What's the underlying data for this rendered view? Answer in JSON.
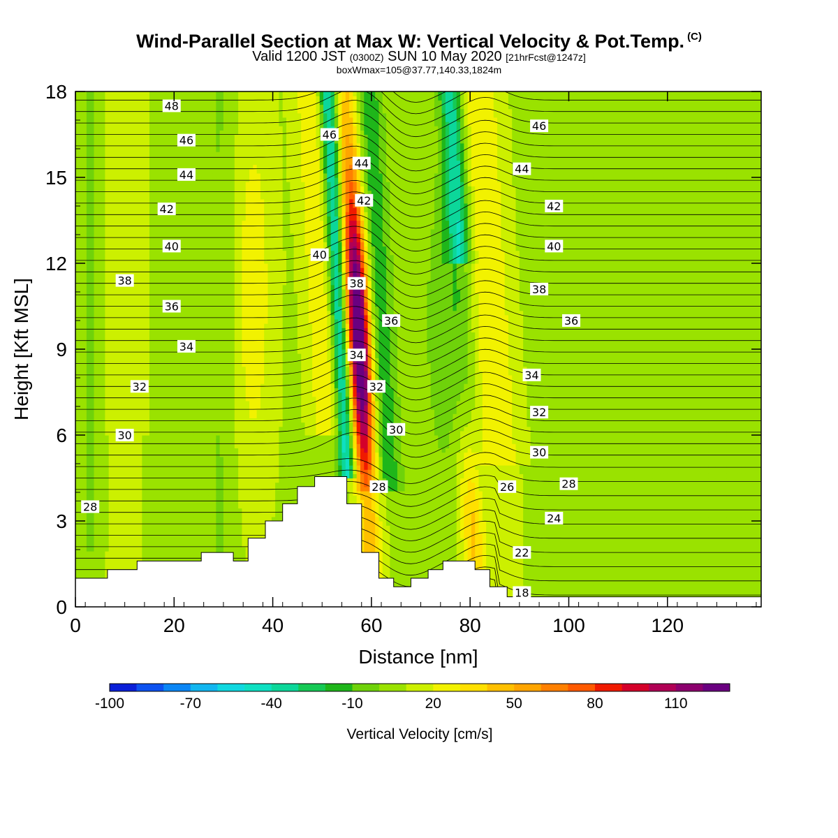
{
  "header": {
    "title": "Wind-Parallel Section at Max W: Vertical Velocity & Pot.Temp.",
    "copyright": "(C)",
    "valid_prefix": "Valid 1200 JST",
    "valid_z": "(0300Z)",
    "valid_date": "SUN 10 May 2020",
    "forecast": "[21hrFcst@1247z]",
    "box_info": "boxWmax=105@37.77,140.33,1824m"
  },
  "chart_data": {
    "type": "heatmap",
    "xlabel": "Distance [nm]",
    "ylabel": "Height [Kft MSL]",
    "xlim": [
      0,
      139
    ],
    "ylim": [
      0,
      18
    ],
    "xticks": [
      0,
      20,
      40,
      60,
      80,
      100,
      120
    ],
    "yticks": [
      0,
      3,
      6,
      9,
      12,
      15,
      18
    ],
    "colorbar": {
      "label": "Vertical Velocity [cm/s]",
      "tick_labels": [
        -100,
        -70,
        -40,
        -10,
        20,
        50,
        80,
        110
      ],
      "levels": [
        -100,
        -90,
        -80,
        -70,
        -60,
        -50,
        -40,
        -30,
        -20,
        -10,
        0,
        10,
        20,
        30,
        40,
        50,
        60,
        70,
        80,
        90,
        100,
        110,
        120
      ],
      "colors": [
        "#0a1fd8",
        "#0d52f0",
        "#0b86f5",
        "#12b6f0",
        "#10d8e0",
        "#0ee0c2",
        "#0cd79a",
        "#16c955",
        "#1fb61a",
        "#6fd20a",
        "#9ae200",
        "#ccf000",
        "#f2f200",
        "#ffe000",
        "#ffc000",
        "#ffa500",
        "#ff8000",
        "#ff5a00",
        "#f01a00",
        "#d4002a",
        "#b00055",
        "#8c006e",
        "#6a0080"
      ]
    },
    "terrain": [
      [
        0,
        1.0
      ],
      [
        6.5,
        1.0
      ],
      [
        6.5,
        1.3
      ],
      [
        12.5,
        1.3
      ],
      [
        12.5,
        1.6
      ],
      [
        25.5,
        1.6
      ],
      [
        25.5,
        1.9
      ],
      [
        32,
        1.9
      ],
      [
        32,
        1.6
      ],
      [
        35,
        1.6
      ],
      [
        35,
        2.4
      ],
      [
        38.5,
        2.4
      ],
      [
        38.5,
        3.0
      ],
      [
        42,
        3.0
      ],
      [
        42,
        3.6
      ],
      [
        45,
        3.6
      ],
      [
        45,
        4.2
      ],
      [
        48.5,
        4.2
      ],
      [
        48.5,
        4.55
      ],
      [
        55,
        4.55
      ],
      [
        55,
        3.6
      ],
      [
        58,
        3.6
      ],
      [
        58,
        1.9
      ],
      [
        61.5,
        1.9
      ],
      [
        61.5,
        1.0
      ],
      [
        64.5,
        1.0
      ],
      [
        64.5,
        0.7
      ],
      [
        68,
        0.7
      ],
      [
        68,
        1.0
      ],
      [
        71.5,
        1.0
      ],
      [
        71.5,
        1.3
      ],
      [
        74.5,
        1.3
      ],
      [
        74.5,
        1.6
      ],
      [
        81,
        1.6
      ],
      [
        81,
        1.3
      ],
      [
        84,
        1.3
      ],
      [
        84,
        0.7
      ],
      [
        87.5,
        0.7
      ],
      [
        87.5,
        0.35
      ],
      [
        139,
        0.35
      ]
    ],
    "theta_labels": [
      {
        "v": "48",
        "x": 19.5,
        "y": 17.5
      },
      {
        "v": "46",
        "x": 22.5,
        "y": 16.3
      },
      {
        "v": "44",
        "x": 22.5,
        "y": 15.1
      },
      {
        "v": "42",
        "x": 18.5,
        "y": 13.9
      },
      {
        "v": "40",
        "x": 19.5,
        "y": 12.6
      },
      {
        "v": "38",
        "x": 10,
        "y": 11.4
      },
      {
        "v": "36",
        "x": 19.5,
        "y": 10.5
      },
      {
        "v": "34",
        "x": 22.5,
        "y": 9.1
      },
      {
        "v": "32",
        "x": 13,
        "y": 7.7
      },
      {
        "v": "30",
        "x": 10,
        "y": 6.0
      },
      {
        "v": "28",
        "x": 3,
        "y": 3.5
      },
      {
        "v": "46",
        "x": 51.5,
        "y": 16.5
      },
      {
        "v": "44",
        "x": 58,
        "y": 15.5
      },
      {
        "v": "42",
        "x": 58.5,
        "y": 14.2
      },
      {
        "v": "40",
        "x": 49.5,
        "y": 12.3
      },
      {
        "v": "38",
        "x": 57,
        "y": 11.3
      },
      {
        "v": "36",
        "x": 64,
        "y": 10.0
      },
      {
        "v": "34",
        "x": 57,
        "y": 8.8
      },
      {
        "v": "32",
        "x": 61,
        "y": 7.7
      },
      {
        "v": "30",
        "x": 65,
        "y": 6.2
      },
      {
        "v": "28",
        "x": 61.5,
        "y": 4.2
      },
      {
        "v": "46",
        "x": 94,
        "y": 16.8
      },
      {
        "v": "44",
        "x": 90.5,
        "y": 15.3
      },
      {
        "v": "42",
        "x": 97,
        "y": 14.0
      },
      {
        "v": "40",
        "x": 97,
        "y": 12.6
      },
      {
        "v": "38",
        "x": 94,
        "y": 11.1
      },
      {
        "v": "36",
        "x": 100.5,
        "y": 10.0
      },
      {
        "v": "34",
        "x": 92.5,
        "y": 8.1
      },
      {
        "v": "32",
        "x": 94,
        "y": 6.8
      },
      {
        "v": "30",
        "x": 94,
        "y": 5.4
      },
      {
        "v": "28",
        "x": 100,
        "y": 4.3
      },
      {
        "v": "26",
        "x": 87.5,
        "y": 4.2
      },
      {
        "v": "24",
        "x": 97,
        "y": 3.1
      },
      {
        "v": "22",
        "x": 90.5,
        "y": 1.9
      },
      {
        "v": "18",
        "x": 90.5,
        "y": 0.5
      }
    ]
  }
}
